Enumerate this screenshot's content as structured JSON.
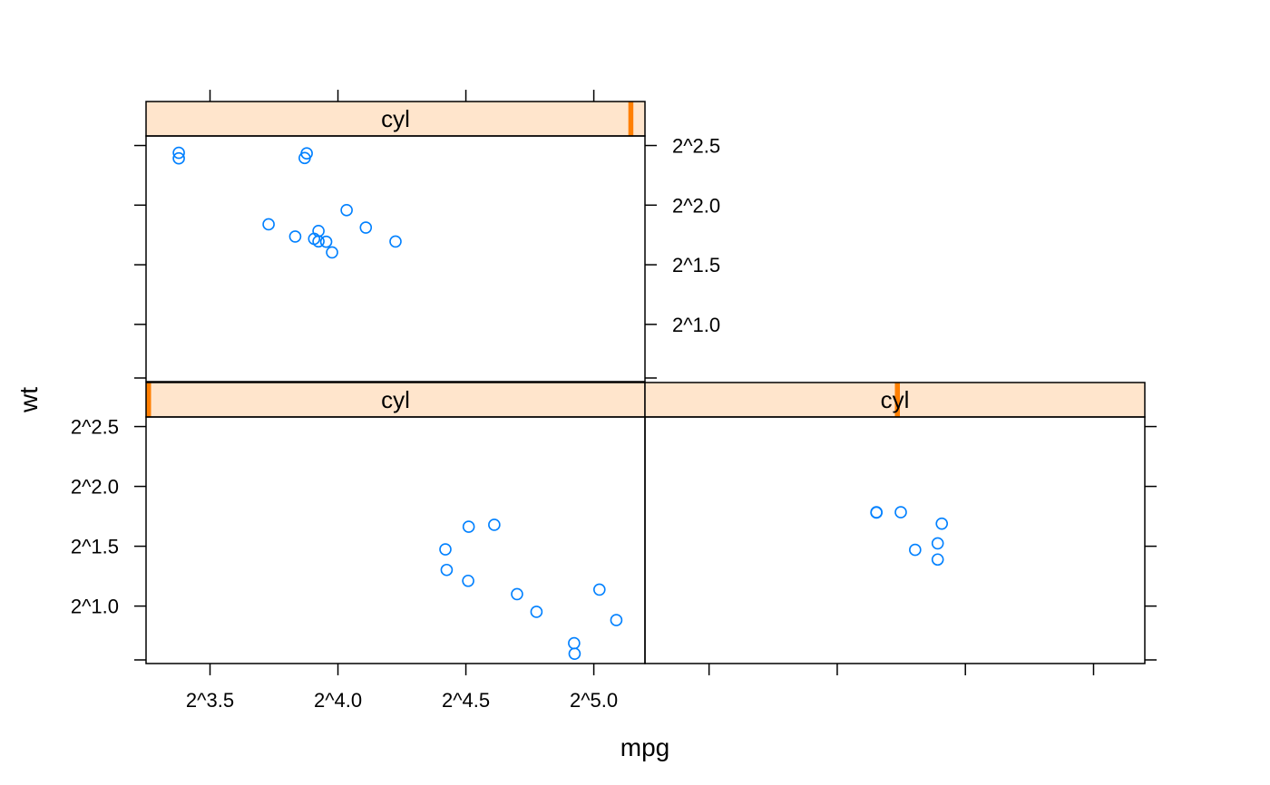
{
  "chart_data": {
    "type": "scatter",
    "layout": "lattice 2x2 panels, strips on top, alternating axes",
    "xlabel": "mpg",
    "ylabel": "wt",
    "x_scale": "log2",
    "y_scale": "log2",
    "x_ticks": [
      {
        "value": 3.5,
        "label": "2^3.5"
      },
      {
        "value": 4.0,
        "label": "2^4.0"
      },
      {
        "value": 4.5,
        "label": "2^4.5"
      },
      {
        "value": 5.0,
        "label": "2^5.0"
      }
    ],
    "y_ticks": [
      {
        "value": 1.0,
        "label": "2^1.0"
      },
      {
        "value": 1.5,
        "label": "2^1.5"
      },
      {
        "value": 2.0,
        "label": "2^2.0"
      },
      {
        "value": 2.5,
        "label": "2^2.5"
      }
    ],
    "xlim_log2": [
      3.25,
      5.2
    ],
    "ylim_log2": [
      0.52,
      2.58
    ],
    "point_color": "#0080ff",
    "strip_bg": "#ffe5cc",
    "strip_level_color": "#ff7f00",
    "panels": [
      {
        "strip": "cyl",
        "strip_level_fraction": [
          0.0,
          0.0333
        ],
        "points_log2": [
          [
            4.923,
            0.69
          ],
          [
            4.925,
            0.602
          ],
          [
            5.088,
            0.883
          ],
          [
            5.022,
            1.138
          ],
          [
            4.511,
            1.663
          ],
          [
            4.7,
            1.1
          ],
          [
            4.776,
            0.952
          ],
          [
            4.425,
            1.302
          ],
          [
            4.611,
            1.679
          ],
          [
            4.509,
            1.211
          ],
          [
            4.42,
            1.474
          ]
        ]
      },
      {
        "strip": "cyl",
        "strip_level_fraction": [
          0.5,
          0.5333
        ],
        "points_log2": [
          [
            4.392,
            1.389
          ],
          [
            4.392,
            1.524
          ],
          [
            4.304,
            1.47
          ],
          [
            4.153,
            1.781
          ],
          [
            4.153,
            1.784
          ],
          [
            4.248,
            1.784
          ],
          [
            4.408,
            1.689
          ]
        ]
      },
      {
        "strip": "cyl",
        "strip_level_fraction": [
          0.9667,
          1.0
        ],
        "points_log2": [
          [
            3.87,
            2.395
          ],
          [
            4.034,
            1.958
          ],
          [
            3.729,
            1.839
          ],
          [
            3.924,
            1.783
          ],
          [
            3.833,
            1.737
          ],
          [
            3.907,
            1.718
          ],
          [
            3.378,
            2.392
          ],
          [
            3.378,
            2.439
          ],
          [
            3.878,
            2.434
          ],
          [
            3.954,
            1.693
          ],
          [
            3.977,
            1.604
          ],
          [
            4.109,
            1.812
          ],
          [
            4.225,
            1.695
          ],
          [
            3.924,
            1.696
          ]
        ]
      }
    ],
    "panel_positions": [
      "bottom-left",
      "bottom-right",
      "top-left"
    ]
  }
}
